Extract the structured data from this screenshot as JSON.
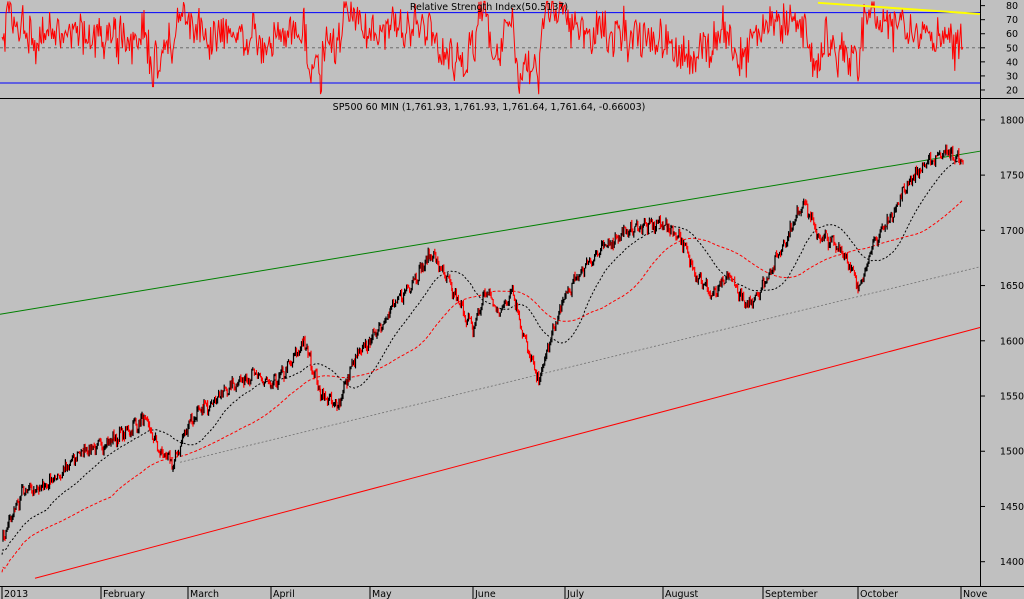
{
  "rsi_panel": {
    "title": "Relative Strength Index(50.5137)",
    "y_ticks": [
      20,
      30,
      40,
      50,
      60,
      70,
      80
    ],
    "ylim": [
      15,
      84
    ],
    "upper_band": 75,
    "lower_band": 25,
    "mid_level": 50,
    "colors": {
      "line": "#ff0000",
      "band": "#0000ff",
      "trendline": "#ffff00",
      "mid": "#606060"
    }
  },
  "price_panel": {
    "title": "SP500 60 MIN (1,761.93, 1,761.93, 1,761.64, 1,761.64, -0.66003)",
    "y_ticks": [
      1400,
      1450,
      1500,
      1550,
      1600,
      1650,
      1700,
      1750,
      1800
    ],
    "ylim": [
      1378,
      1818
    ],
    "colors": {
      "price_up": "#000000",
      "price_down": "#ff0000",
      "ma_fast": "#000000",
      "ma_slow": "#ff0000",
      "channel_top": "#008000",
      "channel_bottom": "#ff0000",
      "channel_mid": "#707070",
      "background": "#c0c0c0"
    }
  },
  "x_axis": {
    "labels": [
      "2013",
      "February",
      "March",
      "April",
      "May",
      "June",
      "July",
      "August",
      "September",
      "October",
      "Nove"
    ]
  },
  "chart_data": {
    "type": "line",
    "title": "SP500 60 MIN (1,761.93, 1,761.93, 1,761.64, 1,761.64, -0.66003)",
    "x": [
      "2013",
      "February",
      "March",
      "April",
      "May",
      "June",
      "July",
      "August",
      "September",
      "October",
      "Nove"
    ],
    "series": [
      {
        "name": "SP500 60 MIN",
        "points": [
          [
            "2013",
            1420
          ],
          [
            "",
            1462
          ],
          [
            "",
            1467
          ],
          [
            "",
            1480
          ],
          [
            "",
            1500
          ],
          [
            "February",
            1505
          ],
          [
            "",
            1512
          ],
          [
            "",
            1520
          ],
          [
            "",
            1530
          ],
          [
            "",
            1500
          ],
          [
            "",
            1488
          ],
          [
            "March",
            1525
          ],
          [
            "",
            1540
          ],
          [
            "",
            1552
          ],
          [
            "",
            1563
          ],
          [
            "",
            1570
          ],
          [
            "April",
            1558
          ],
          [
            "",
            1575
          ],
          [
            "",
            1600
          ],
          [
            "",
            1552
          ],
          [
            "",
            1540
          ],
          [
            "",
            1582
          ],
          [
            "May",
            1600
          ],
          [
            "",
            1628
          ],
          [
            "",
            1652
          ],
          [
            "",
            1680
          ],
          [
            "",
            1645
          ],
          [
            "June",
            1610
          ],
          [
            "",
            1646
          ],
          [
            "",
            1625
          ],
          [
            "",
            1647
          ],
          [
            "",
            1598
          ],
          [
            "",
            1563
          ],
          [
            "",
            1605
          ],
          [
            "July",
            1640
          ],
          [
            "",
            1668
          ],
          [
            "",
            1685
          ],
          [
            "",
            1698
          ],
          [
            "",
            1704
          ],
          [
            "August",
            1706
          ],
          [
            "",
            1694
          ],
          [
            "",
            1660
          ],
          [
            "",
            1640
          ],
          [
            "",
            1660
          ],
          [
            "",
            1630
          ],
          [
            "September",
            1650
          ],
          [
            "",
            1675
          ],
          [
            "",
            1700
          ],
          [
            "",
            1728
          ],
          [
            "",
            1695
          ],
          [
            "",
            1690
          ],
          [
            "",
            1680
          ],
          [
            "October",
            1648
          ],
          [
            "",
            1690
          ],
          [
            "",
            1715
          ],
          [
            "",
            1745
          ],
          [
            "",
            1760
          ],
          [
            "",
            1772
          ],
          [
            "Nove",
            1762
          ]
        ]
      }
    ],
    "ylim": [
      1378,
      1818
    ],
    "rsi": {
      "title": "Relative Strength Index(50.5137)",
      "last_value": 50.5137,
      "ylim": [
        15,
        84
      ],
      "levels": [
        25,
        50,
        75
      ]
    }
  }
}
